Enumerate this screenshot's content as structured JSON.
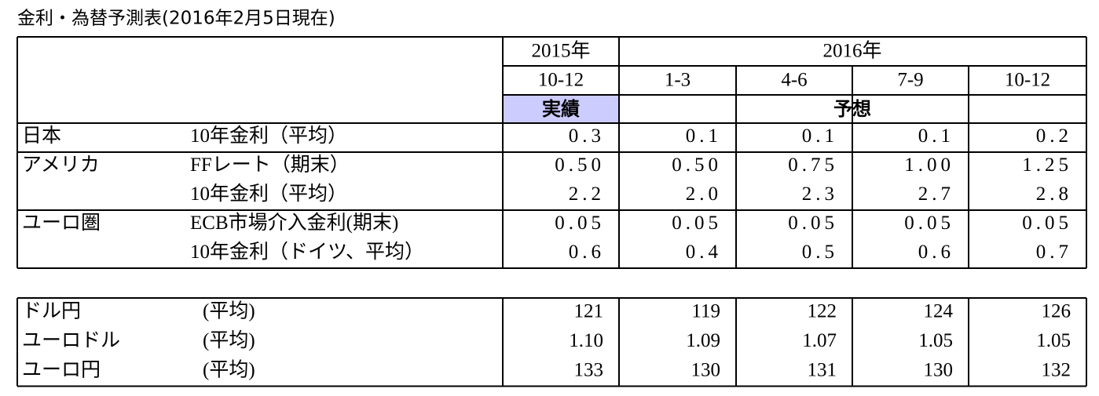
{
  "title": "金利・為替予測表(2016年2月5日現在)",
  "header": {
    "years": [
      "2015年",
      "2016年"
    ],
    "periods": [
      "10-12",
      "1-3",
      "4-6",
      "7-9",
      "10-12"
    ],
    "status": [
      "実績",
      "予想"
    ]
  },
  "rates": [
    {
      "region": "日本",
      "rows": [
        {
          "label": "10年金利（平均）",
          "values": [
            "0.3",
            "0.1",
            "0.1",
            "0.1",
            "0.2"
          ]
        }
      ]
    },
    {
      "region": "アメリカ",
      "rows": [
        {
          "label": "FFレート（期末）",
          "values": [
            "0.50",
            "0.50",
            "0.75",
            "1.00",
            "1.25"
          ]
        },
        {
          "label": "10年金利（平均）",
          "values": [
            "2.2",
            "2.0",
            "2.3",
            "2.7",
            "2.8"
          ]
        }
      ]
    },
    {
      "region": "ユーロ圏",
      "rows": [
        {
          "label": "ECB市場介入金利(期末)",
          "values": [
            "0.05",
            "0.05",
            "0.05",
            "0.05",
            "0.05"
          ]
        },
        {
          "label": "10年金利（ドイツ、平均）",
          "values": [
            "0.6",
            "0.4",
            "0.5",
            "0.6",
            "0.7"
          ]
        }
      ]
    }
  ],
  "fx": [
    {
      "label": "ドル円",
      "note": "(平均)",
      "values": [
        "121",
        "119",
        "122",
        "124",
        "126"
      ]
    },
    {
      "label": "ユーロドル",
      "note": "(平均)",
      "values": [
        "1.10",
        "1.09",
        "1.07",
        "1.05",
        "1.05"
      ]
    },
    {
      "label": "ユーロ円",
      "note": "(平均)",
      "values": [
        "133",
        "130",
        "131",
        "130",
        "132"
      ]
    }
  ]
}
